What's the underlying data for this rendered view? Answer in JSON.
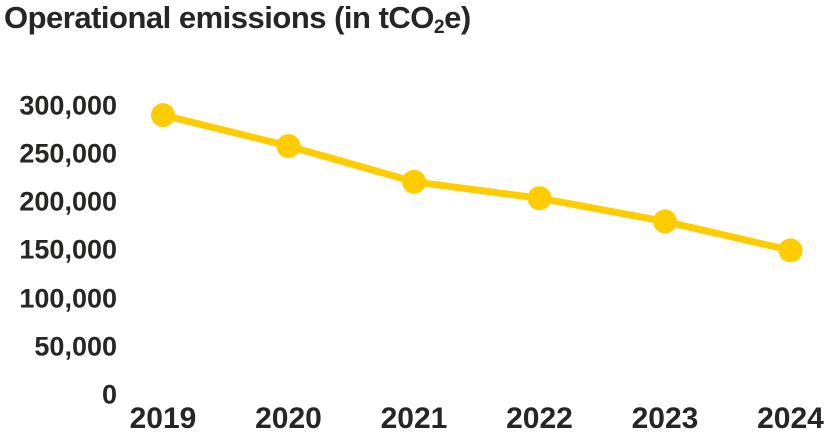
{
  "title": {
    "prefix": "Operational emissions (in tCO",
    "subscript": "2",
    "suffix": "e)"
  },
  "colors": {
    "line": "#FFCC00",
    "marker": "#FFCC00",
    "text": "#262625",
    "background": "#FFFFFF"
  },
  "chart_data": {
    "type": "line",
    "title": "Operational emissions (in tCO2e)",
    "categories": [
      "2019",
      "2020",
      "2021",
      "2022",
      "2023",
      "2024"
    ],
    "series": [
      {
        "name": "Operational emissions",
        "values": [
          290000,
          258000,
          221000,
          204000,
          180000,
          150000
        ]
      }
    ],
    "xlabel": "",
    "ylabel": "",
    "ylim": [
      0,
      300000
    ],
    "ytick_interval": 50000,
    "ytick_labels": [
      "0",
      "50,000",
      "100,000",
      "150,000",
      "200,000",
      "250,000",
      "300,000"
    ],
    "grid": false,
    "axis_lines": false,
    "legend_position": "none",
    "marker_style": "circle"
  }
}
